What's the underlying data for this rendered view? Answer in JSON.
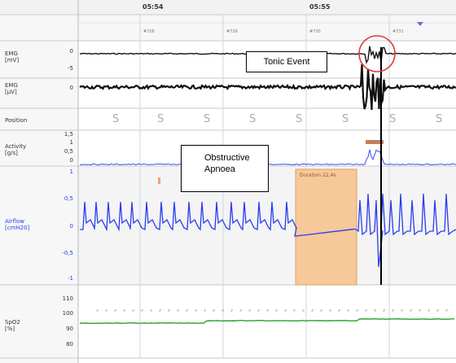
{
  "timeline": {
    "times": [
      "05:54",
      "05:55"
    ],
    "epochs": [
      "#728",
      "#729",
      "#730",
      "#731"
    ]
  },
  "channels": {
    "emg1": {
      "label": "EMG\n[mV]",
      "ticks": [
        "0",
        "-5"
      ]
    },
    "emg2": {
      "label": "EMG\n[µV]",
      "ticks": [
        "0"
      ]
    },
    "position": {
      "label": "Position",
      "marker": "S"
    },
    "activity": {
      "label": "Activity\n[g/s]",
      "ticks": [
        "1,5",
        "1",
        "0,5",
        "0"
      ]
    },
    "airflow": {
      "label": "Airflow\n[cmH20]",
      "ticks": [
        "1",
        "0,5",
        "0",
        "-0,5",
        "-1"
      ]
    },
    "spo2": {
      "label": "SpO2\n[%]",
      "ticks": [
        "110",
        "100",
        "90",
        "80"
      ]
    }
  },
  "annotations": {
    "tonic": "Tonic Event",
    "obstructive": "Obstructive\nApnoea",
    "duration": "Duration 22,4s"
  },
  "colors": {
    "airflow": "#2a3cf0",
    "spo2": "#2aa02a",
    "event_fill": "#f6c89a",
    "event_border": "#e0a060",
    "circle": "#e04040",
    "grid": "#cfd5e0"
  }
}
